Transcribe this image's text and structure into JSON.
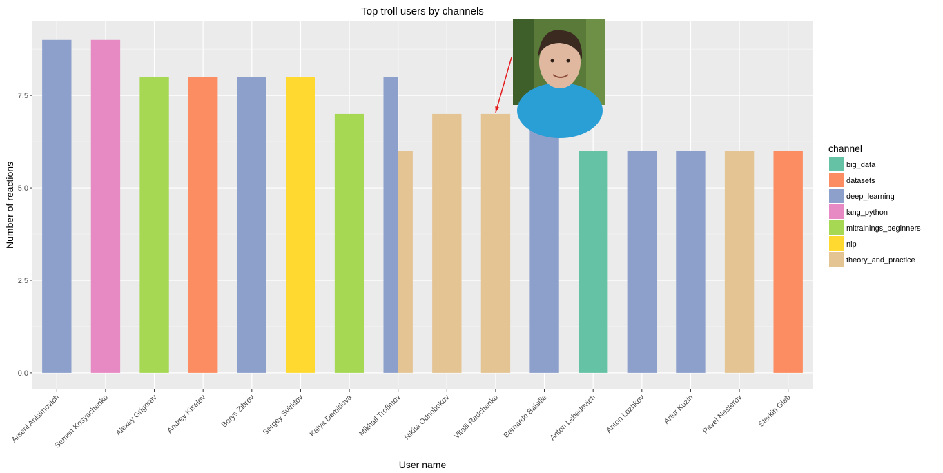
{
  "chart_data": {
    "type": "bar",
    "title": "Top troll users by channels",
    "xlabel": "User name",
    "ylabel": "Number of reactions",
    "ylim": [
      -0.45,
      9.5
    ],
    "yticks": [
      "0.0",
      "2.5",
      "5.0",
      "7.5"
    ],
    "ytick_values": [
      0,
      2.5,
      5,
      7.5
    ],
    "grid": true,
    "legend": {
      "title": "channel",
      "placement": "right",
      "entries": [
        {
          "name": "big_data",
          "color": "#66c2a5"
        },
        {
          "name": "datasets",
          "color": "#fc8d62"
        },
        {
          "name": "deep_learning",
          "color": "#8da0cb"
        },
        {
          "name": "lang_python",
          "color": "#e78ac3"
        },
        {
          "name": "mltrainings_beginners",
          "color": "#a6d854"
        },
        {
          "name": "nlp",
          "color": "#ffd92f"
        },
        {
          "name": "theory_and_practice",
          "color": "#e5c494"
        }
      ]
    },
    "categories": [
      "Arseni Anisimovich",
      "Semen Kosyachenko",
      "Alexey Grigorev",
      "Andrey Kiselev",
      "Borys Zibrov",
      "Sergey Sviridov",
      "Katya Demidova",
      "Mikhail Trofimov",
      "Nikita Odnobokov",
      "Vitalii Radchenko",
      "Bernardo Baisille",
      "Anton Lebedevich",
      "Anton Lozhkov",
      "Artur Kuzin",
      "Pavel Nesterov",
      "Sterkin Gleb"
    ],
    "bars": [
      {
        "category": "Arseni Anisimovich",
        "channel": "deep_learning",
        "value": 9
      },
      {
        "category": "Semen Kosyachenko",
        "channel": "lang_python",
        "value": 9
      },
      {
        "category": "Alexey Grigorev",
        "channel": "mltrainings_beginners",
        "value": 8
      },
      {
        "category": "Andrey Kiselev",
        "channel": "datasets",
        "value": 8
      },
      {
        "category": "Borys Zibrov",
        "channel": "deep_learning",
        "value": 8
      },
      {
        "category": "Sergey Sviridov",
        "channel": "nlp",
        "value": 8
      },
      {
        "category": "Katya Demidova",
        "channel": "mltrainings_beginners",
        "value": 7
      },
      {
        "category": "Mikhail Trofimov",
        "channel": "deep_learning",
        "value": 8
      },
      {
        "category": "Mikhail Trofimov",
        "channel": "theory_and_practice",
        "value": 6
      },
      {
        "category": "Nikita Odnobokov",
        "channel": "theory_and_practice",
        "value": 7
      },
      {
        "category": "Vitalii Radchenko",
        "channel": "theory_and_practice",
        "value": 7
      },
      {
        "category": "Bernardo Baisille",
        "channel": "deep_learning",
        "value": 7
      },
      {
        "category": "Anton Lebedevich",
        "channel": "big_data",
        "value": 6
      },
      {
        "category": "Anton Lozhkov",
        "channel": "deep_learning",
        "value": 6
      },
      {
        "category": "Artur Kuzin",
        "channel": "deep_learning",
        "value": 6
      },
      {
        "category": "Pavel Nesterov",
        "channel": "theory_and_practice",
        "value": 6
      },
      {
        "category": "Sterkin Gleb",
        "channel": "datasets",
        "value": 6
      }
    ],
    "annotation": {
      "type": "photo-with-arrow",
      "target_category": "Vitalii Radchenko",
      "arrow_color": "#e41a1c",
      "photo_colors": {
        "background": "#5a7a3a",
        "foliage": "#3e5f2a",
        "shirt": "#2a9fd6",
        "skin": "#e0b8a0",
        "hair": "#3a2a20"
      }
    },
    "colors": {
      "panel": "#ebebeb",
      "grid_major": "#ffffff",
      "grid_minor": "#f5f5f5",
      "tick_text": "#4d4d4d"
    }
  }
}
